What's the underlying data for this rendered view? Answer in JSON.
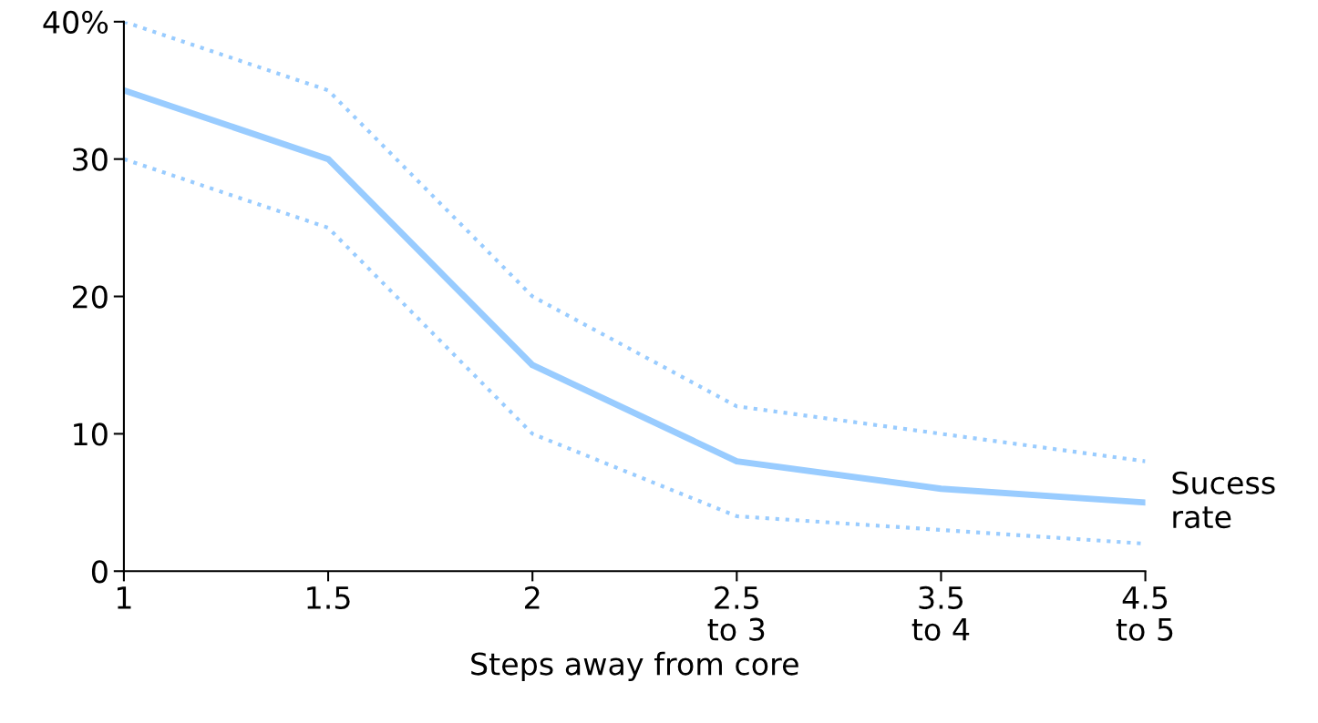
{
  "chart_data": {
    "type": "line",
    "xlabel": "Steps away from core",
    "categories": [
      "1",
      "1.5",
      "2",
      "2.5\nto 3",
      "3.5\nto 4",
      "4.5\nto 5"
    ],
    "series": [
      {
        "name": "Sucess rate",
        "color": "#99ccff",
        "line_style": "solid",
        "values": [
          35,
          30,
          15,
          8,
          6,
          5
        ]
      },
      {
        "color": "#99ccff",
        "line_style": "dotted",
        "values": [
          40,
          35,
          20,
          12,
          10,
          8
        ]
      },
      {
        "color": "#99ccff",
        "line_style": "dotted",
        "values": [
          30,
          25,
          10,
          4,
          3,
          2
        ]
      }
    ],
    "ylim": [
      0,
      40
    ],
    "yticks": [
      0,
      10,
      20,
      30,
      {
        "value": 40,
        "label": "40%"
      }
    ],
    "grid": false,
    "legend": false,
    "marker": "none"
  }
}
